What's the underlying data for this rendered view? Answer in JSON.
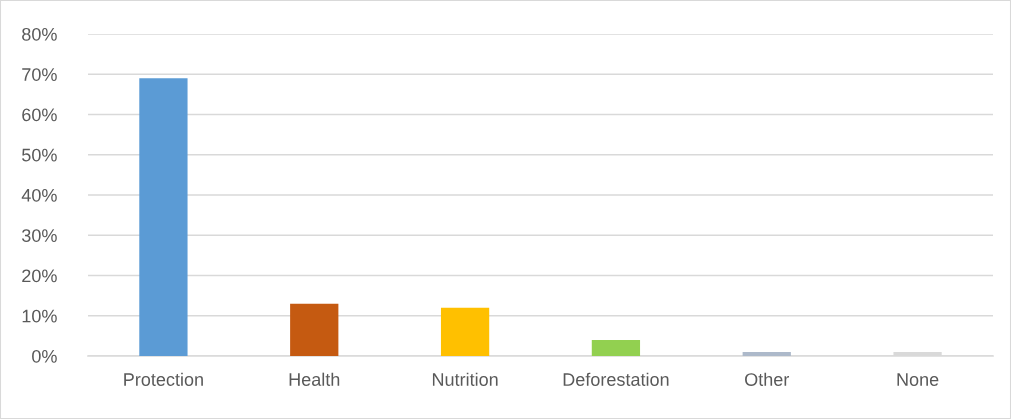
{
  "chart_data": {
    "type": "bar",
    "categories": [
      "Protection",
      "Health",
      "Nutrition",
      "Deforestation",
      "Other",
      "None"
    ],
    "values": [
      69,
      13,
      12,
      4,
      1,
      1
    ],
    "colors": [
      "#5b9bd5",
      "#c55a11",
      "#ffc000",
      "#92d050",
      "#adb9ca",
      "#d9d9d9"
    ],
    "ylim": [
      0,
      80
    ],
    "yticks": [
      {
        "value": 0,
        "label": "0%"
      },
      {
        "value": 10,
        "label": "10%"
      },
      {
        "value": 20,
        "label": "20%"
      },
      {
        "value": 30,
        "label": "30%"
      },
      {
        "value": 40,
        "label": "40%"
      },
      {
        "value": 50,
        "label": "50%"
      },
      {
        "value": 60,
        "label": "60%"
      },
      {
        "value": 70,
        "label": "70%"
      },
      {
        "value": 80,
        "label": "80%"
      }
    ],
    "grid": "y",
    "legend": false
  }
}
